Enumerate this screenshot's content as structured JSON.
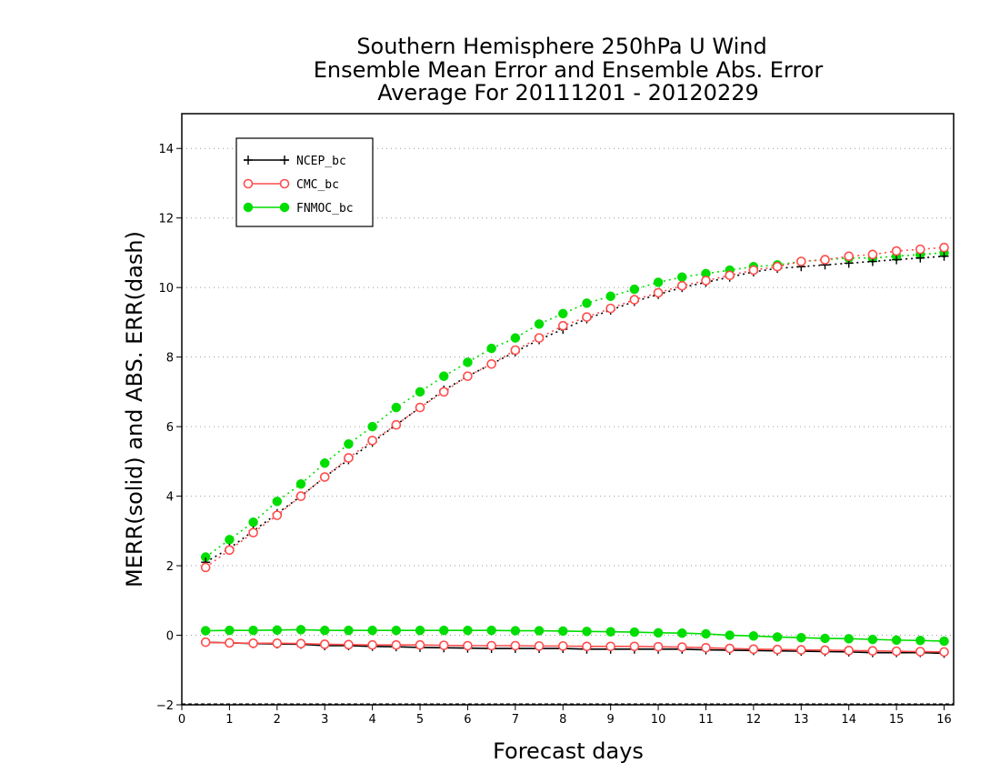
{
  "chart_data": {
    "type": "line",
    "title": [
      "Southern Hemisphere 250hPa U Wind",
      "Ensemble Mean Error and Ensemble Abs. Error",
      "Average For 20111201 - 20120229"
    ],
    "xlabel": "Forecast days",
    "ylabel": "MERR(solid) and ABS. ERR(dash)",
    "xlim": [
      0,
      16.2
    ],
    "ylim": [
      -2,
      15
    ],
    "xticks": [
      0,
      1,
      2,
      3,
      4,
      5,
      6,
      7,
      8,
      9,
      10,
      11,
      12,
      13,
      14,
      15,
      16
    ],
    "yticks": [
      -2,
      0,
      2,
      4,
      6,
      8,
      10,
      12,
      14
    ],
    "grid": "horizontal dotted",
    "legend_position": "top-left",
    "x": [
      0.5,
      1,
      1.5,
      2,
      2.5,
      3,
      3.5,
      4,
      4.5,
      5,
      5.5,
      6,
      6.5,
      7,
      7.5,
      8,
      8.5,
      9,
      9.5,
      10,
      10.5,
      11,
      11.5,
      12,
      12.5,
      13,
      13.5,
      14,
      14.5,
      15,
      15.5,
      16
    ],
    "series": [
      {
        "name": "NCEP_bc",
        "color": "#000000",
        "marker": "plus",
        "merr": [
          -0.2,
          -0.22,
          -0.24,
          -0.25,
          -0.26,
          -0.3,
          -0.3,
          -0.32,
          -0.33,
          -0.35,
          -0.36,
          -0.37,
          -0.38,
          -0.38,
          -0.38,
          -0.38,
          -0.4,
          -0.4,
          -0.4,
          -0.4,
          -0.4,
          -0.42,
          -0.43,
          -0.44,
          -0.45,
          -0.46,
          -0.47,
          -0.48,
          -0.5,
          -0.5,
          -0.5,
          -0.52
        ],
        "abs_err": [
          2.1,
          2.5,
          3.0,
          3.5,
          4.0,
          4.55,
          5.05,
          5.55,
          6.05,
          6.55,
          7.05,
          7.45,
          7.8,
          8.15,
          8.5,
          8.8,
          9.1,
          9.35,
          9.6,
          9.8,
          10.0,
          10.15,
          10.3,
          10.45,
          10.55,
          10.6,
          10.65,
          10.7,
          10.75,
          10.8,
          10.85,
          10.9
        ]
      },
      {
        "name": "CMC_bc",
        "color": "#ff4d4d",
        "marker": "open-circle",
        "merr": [
          -0.2,
          -0.22,
          -0.23,
          -0.23,
          -0.24,
          -0.26,
          -0.27,
          -0.28,
          -0.28,
          -0.28,
          -0.29,
          -0.3,
          -0.3,
          -0.3,
          -0.31,
          -0.31,
          -0.32,
          -0.32,
          -0.32,
          -0.33,
          -0.34,
          -0.36,
          -0.38,
          -0.4,
          -0.41,
          -0.42,
          -0.43,
          -0.44,
          -0.45,
          -0.46,
          -0.47,
          -0.48
        ],
        "abs_err": [
          1.95,
          2.45,
          2.95,
          3.45,
          4.0,
          4.55,
          5.1,
          5.6,
          6.05,
          6.55,
          7.0,
          7.45,
          7.8,
          8.2,
          8.55,
          8.9,
          9.15,
          9.4,
          9.65,
          9.85,
          10.05,
          10.2,
          10.35,
          10.5,
          10.6,
          10.75,
          10.8,
          10.9,
          10.95,
          11.05,
          11.1,
          11.15
        ]
      },
      {
        "name": "FNMOC_bc",
        "color": "#00dd00",
        "marker": "filled-circle",
        "merr": [
          0.13,
          0.14,
          0.14,
          0.15,
          0.16,
          0.14,
          0.14,
          0.14,
          0.14,
          0.14,
          0.14,
          0.14,
          0.14,
          0.13,
          0.13,
          0.12,
          0.11,
          0.1,
          0.09,
          0.07,
          0.06,
          0.04,
          0.0,
          -0.02,
          -0.05,
          -0.07,
          -0.09,
          -0.1,
          -0.12,
          -0.14,
          -0.15,
          -0.17
        ],
        "abs_err": [
          2.25,
          2.75,
          3.25,
          3.85,
          4.35,
          4.95,
          5.5,
          6.0,
          6.55,
          7.0,
          7.45,
          7.85,
          8.25,
          8.55,
          8.95,
          9.25,
          9.55,
          9.75,
          9.95,
          10.15,
          10.3,
          10.4,
          10.5,
          10.6,
          10.65,
          10.75,
          10.8,
          10.85,
          10.85,
          10.9,
          10.95,
          11.0
        ]
      }
    ]
  }
}
